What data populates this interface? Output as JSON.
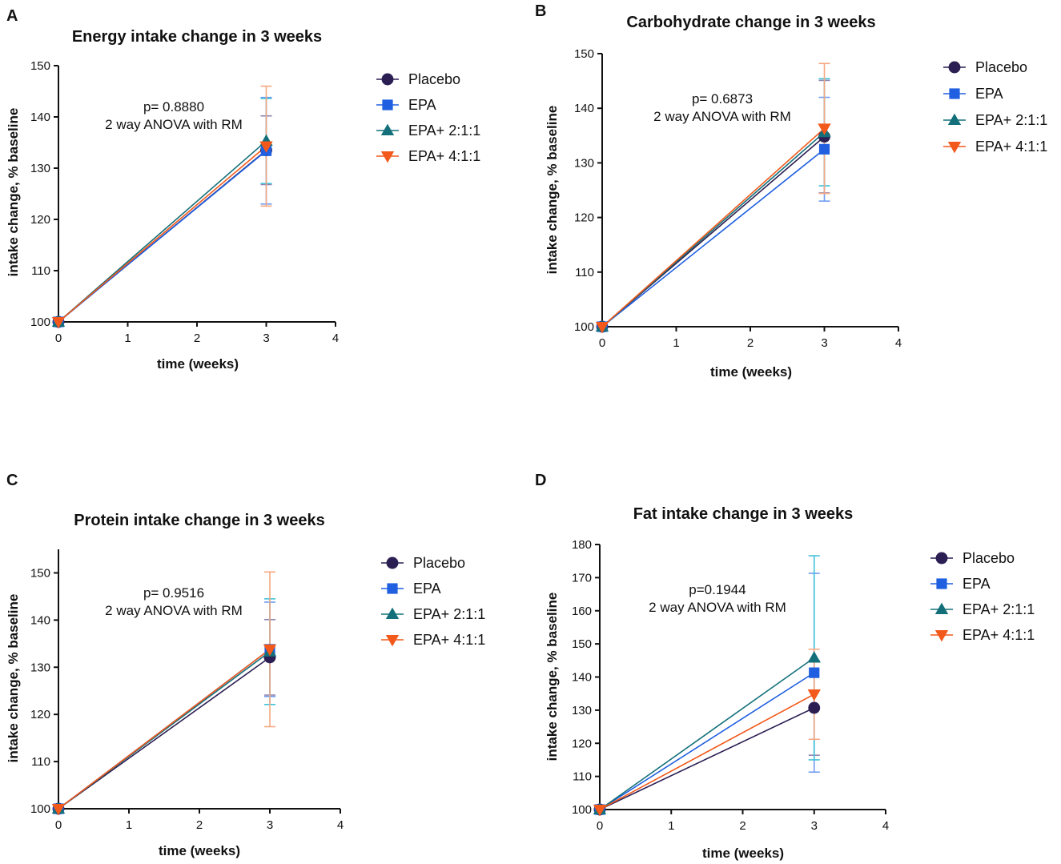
{
  "figure": {
    "series_meta": [
      {
        "name": "Placebo",
        "color": "#2b1e52",
        "marker": "circle",
        "error_color": "#8f86b2"
      },
      {
        "name": "EPA",
        "color": "#1f5fe0",
        "marker": "square",
        "error_color": "#6f9cf0"
      },
      {
        "name": "EPA+ 2:1:1",
        "color": "#13707a",
        "marker": "triangle-up",
        "error_color": "#40c2d8"
      },
      {
        "name": "EPA+ 4:1:1",
        "color": "#f2591a",
        "marker": "triangle-down",
        "error_color": "#f5a882"
      }
    ]
  },
  "chart_data": [
    {
      "panel": "A",
      "type": "line",
      "title": "Energy intake change in 3 weeks",
      "xlabel": "time (weeks)",
      "ylabel": "intake change, % baseline",
      "xlim": [
        0,
        4
      ],
      "ylim": [
        100,
        150
      ],
      "x_ticks": [
        0,
        1,
        2,
        3,
        4
      ],
      "y_ticks": [
        100,
        110,
        120,
        130,
        140,
        150
      ],
      "x": [
        0,
        3
      ],
      "annotation": [
        "p= 0.8880",
        "2 way ANOVA with RM"
      ],
      "series": [
        {
          "name": "Placebo",
          "values": [
            100,
            133.5
          ],
          "error": [
            0,
            6.7
          ]
        },
        {
          "name": "EPA",
          "values": [
            100,
            133.4
          ],
          "error": [
            0,
            10.4
          ]
        },
        {
          "name": "EPA+ 2:1:1",
          "values": [
            100,
            135.3
          ],
          "error": [
            0,
            8.3
          ]
        },
        {
          "name": "EPA+ 4:1:1",
          "values": [
            100,
            134.3
          ],
          "error": [
            0,
            11.7
          ]
        }
      ]
    },
    {
      "panel": "B",
      "type": "line",
      "title": "Carbohydrate change in 3 weeks",
      "xlabel": "time (weeks)",
      "ylabel": "intake change, % baseline",
      "xlim": [
        0,
        4
      ],
      "ylim": [
        100,
        150
      ],
      "x_ticks": [
        0,
        1,
        2,
        3,
        4
      ],
      "y_ticks": [
        100,
        110,
        120,
        130,
        140,
        150
      ],
      "x": [
        0,
        3
      ],
      "annotation": [
        "p= 0.6873",
        "2 way ANOVA with RM"
      ],
      "series": [
        {
          "name": "Placebo",
          "values": [
            100,
            134.8
          ],
          "error": [
            0,
            10.3
          ]
        },
        {
          "name": "EPA",
          "values": [
            100,
            132.5
          ],
          "error": [
            0,
            9.5
          ]
        },
        {
          "name": "EPA+ 2:1:1",
          "values": [
            100,
            135.6
          ],
          "error": [
            0,
            9.8
          ]
        },
        {
          "name": "EPA+ 4:1:1",
          "values": [
            100,
            136.3
          ],
          "error": [
            0,
            11.9
          ]
        }
      ]
    },
    {
      "panel": "C",
      "type": "line",
      "title": "Protein intake change in 3 weeks",
      "xlabel": "time (weeks)",
      "ylabel": "intake change, % baseline",
      "xlim": [
        0,
        4
      ],
      "ylim": [
        100,
        155
      ],
      "x_ticks": [
        0,
        1,
        2,
        3,
        4
      ],
      "y_ticks": [
        100,
        110,
        120,
        130,
        140,
        150
      ],
      "x": [
        0,
        3
      ],
      "annotation": [
        "p= 0.9516",
        "2 way ANOVA with RM"
      ],
      "series": [
        {
          "name": "Placebo",
          "values": [
            100,
            132.1
          ],
          "error": [
            0,
            8.0
          ]
        },
        {
          "name": "EPA",
          "values": [
            100,
            133.8
          ],
          "error": [
            0,
            10.0
          ]
        },
        {
          "name": "EPA+ 2:1:1",
          "values": [
            100,
            133.3
          ],
          "error": [
            0,
            11.2
          ]
        },
        {
          "name": "EPA+ 4:1:1",
          "values": [
            100,
            133.8
          ],
          "error": [
            0,
            16.4
          ]
        }
      ]
    },
    {
      "panel": "D",
      "type": "line",
      "title": "Fat intake change in 3 weeks",
      "xlabel": "time (weeks)",
      "ylabel": "intake change, % baseline",
      "xlim": [
        0,
        4
      ],
      "ylim": [
        100,
        180
      ],
      "x_ticks": [
        0,
        1,
        2,
        3,
        4
      ],
      "y_ticks": [
        100,
        110,
        120,
        130,
        140,
        150,
        160,
        170,
        180
      ],
      "x": [
        0,
        3
      ],
      "annotation": [
        "p=0.1944",
        "2 way ANOVA with RM"
      ],
      "series": [
        {
          "name": "Placebo",
          "values": [
            100,
            130.7
          ],
          "error": [
            0,
            14.3
          ]
        },
        {
          "name": "EPA",
          "values": [
            100,
            141.3
          ],
          "error": [
            0,
            30.0
          ]
        },
        {
          "name": "EPA+ 2:1:1",
          "values": [
            100,
            145.8
          ],
          "error": [
            0,
            30.8
          ]
        },
        {
          "name": "EPA+ 4:1:1",
          "values": [
            100,
            134.8
          ],
          "error": [
            0,
            13.6
          ]
        }
      ]
    }
  ]
}
